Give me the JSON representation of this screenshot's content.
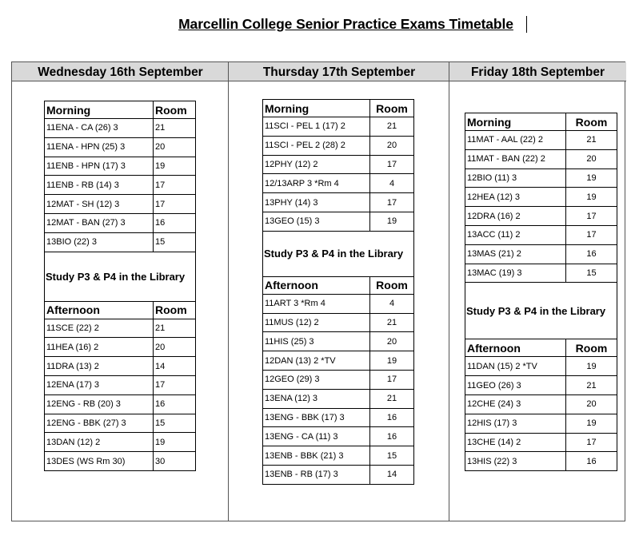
{
  "title": "Marcellin College Senior Practice Exams Timetable",
  "days": [
    {
      "heading": "Wednesday 16th September",
      "morning_label": "Morning",
      "afternoon_label": "Afternoon",
      "room_label": "Room",
      "study_note": "Study P3 & P4 in the Library",
      "morning": [
        {
          "exam": "11ENA - CA (26) 3",
          "room": "21"
        },
        {
          "exam": "11ENA - HPN (25) 3",
          "room": "20"
        },
        {
          "exam": "11ENB - HPN (17) 3",
          "room": "19"
        },
        {
          "exam": "11ENB - RB (14) 3",
          "room": "17"
        },
        {
          "exam": "12MAT - SH (12) 3",
          "room": "17"
        },
        {
          "exam": "12MAT - BAN (27) 3",
          "room": "16"
        },
        {
          "exam": "13BIO (22) 3",
          "room": "15"
        }
      ],
      "afternoon": [
        {
          "exam": "11SCE (22) 2",
          "room": "21"
        },
        {
          "exam": "11HEA (16) 2",
          "room": "20"
        },
        {
          "exam": "11DRA (13) 2",
          "room": "14"
        },
        {
          "exam": "12ENA (17) 3",
          "room": "17"
        },
        {
          "exam": "12ENG - RB (20) 3",
          "room": "16"
        },
        {
          "exam": "12ENG - BBK (27) 3",
          "room": "15"
        },
        {
          "exam": "13DAN (12) 2",
          "room": "19"
        },
        {
          "exam": "13DES (WS Rm 30)",
          "room": "30"
        }
      ]
    },
    {
      "heading": "Thursday 17th September",
      "morning_label": "Morning",
      "afternoon_label": "Afternoon",
      "room_label": "Room",
      "study_note": "Study P3 & P4 in the Library",
      "morning": [
        {
          "exam": "11SCI - PEL 1 (17) 2",
          "room": "21"
        },
        {
          "exam": "11SCI - PEL 2 (28) 2",
          "room": "20"
        },
        {
          "exam": "12PHY (12) 2",
          "room": "17"
        },
        {
          "exam": "12/13ARP 3 *Rm 4",
          "room": "4"
        },
        {
          "exam": "13PHY (14) 3",
          "room": "17"
        },
        {
          "exam": "13GEO (15) 3",
          "room": "19"
        }
      ],
      "afternoon": [
        {
          "exam": "11ART 3 *Rm 4",
          "room": "4"
        },
        {
          "exam": "11MUS (12) 2",
          "room": "21"
        },
        {
          "exam": "11HIS (25) 3",
          "room": "20"
        },
        {
          "exam": "12DAN (13) 2 *TV",
          "room": "19"
        },
        {
          "exam": "12GEO (29) 3",
          "room": "17"
        },
        {
          "exam": "13ENA (12) 3",
          "room": "21"
        },
        {
          "exam": "13ENG - BBK (17) 3",
          "room": "16"
        },
        {
          "exam": "13ENG - CA (11) 3",
          "room": "16"
        },
        {
          "exam": "13ENB - BBK (21) 3",
          "room": "15"
        },
        {
          "exam": "13ENB - RB (17) 3",
          "room": "14"
        }
      ]
    },
    {
      "heading": "Friday 18th September",
      "morning_label": "Morning",
      "afternoon_label": "Afternoon",
      "room_label": "Room",
      "study_note": "Study P3 & P4 in the Library",
      "morning": [
        {
          "exam": "11MAT - AAL (22) 2",
          "room": "21"
        },
        {
          "exam": "11MAT - BAN (22) 2",
          "room": "20"
        },
        {
          "exam": "12BIO (11) 3",
          "room": "19"
        },
        {
          "exam": "12HEA (12) 3",
          "room": "19"
        },
        {
          "exam": "12DRA (16) 2",
          "room": "17"
        },
        {
          "exam": "13ACC (11) 2",
          "room": "17"
        },
        {
          "exam": "13MAS (21) 2",
          "room": "16"
        },
        {
          "exam": "13MAC (19) 3",
          "room": "15"
        }
      ],
      "afternoon": [
        {
          "exam": "11DAN (15) 2 *TV",
          "room": "19"
        },
        {
          "exam": "11GEO (26) 3",
          "room": "21"
        },
        {
          "exam": "12CHE (24) 3",
          "room": "20"
        },
        {
          "exam": "12HIS (17) 3",
          "room": "19"
        },
        {
          "exam": "13CHE (14) 2",
          "room": "17"
        },
        {
          "exam": "13HIS (22) 3",
          "room": "16"
        }
      ]
    }
  ]
}
